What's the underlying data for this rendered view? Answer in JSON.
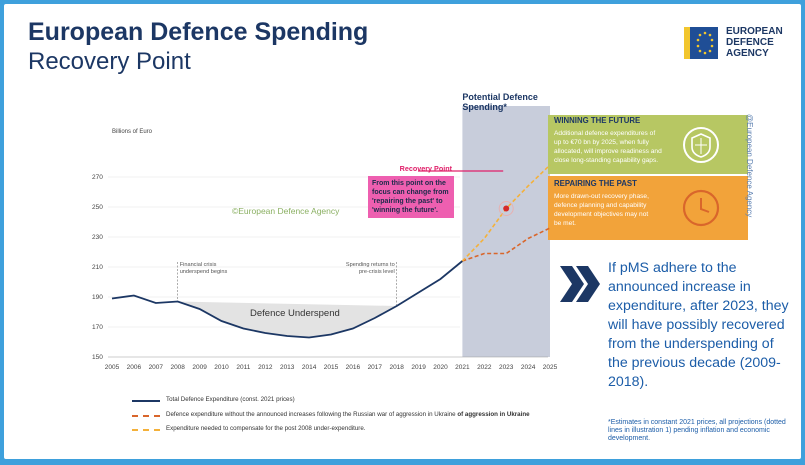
{
  "header": {
    "title": "European Defence Spending",
    "subtitle": "Recovery Point"
  },
  "logo": {
    "line1": "EUROPEAN",
    "line2": "DEFENCE",
    "line3": "AGENCY"
  },
  "chart_data": {
    "type": "line",
    "ylabel": "Billions of Euro",
    "ylim": [
      150,
      270
    ],
    "yticks": [
      150,
      170,
      190,
      210,
      230,
      250,
      270
    ],
    "categories": [
      "2005",
      "2006",
      "2007",
      "2008",
      "2009",
      "2010",
      "2011",
      "2012",
      "2013",
      "2014",
      "2015",
      "2016",
      "2017",
      "2018",
      "2019",
      "2020",
      "2021",
      "2022",
      "2023",
      "2024",
      "2025"
    ],
    "series": [
      {
        "name": "Total Defence Expenditure (const. 2021 prices)",
        "color": "#1c3764",
        "x": [
          2005,
          2006,
          2007,
          2008,
          2009,
          2010,
          2011,
          2012,
          2013,
          2014,
          2015,
          2016,
          2017,
          2018,
          2019,
          2020,
          2021
        ],
        "values": [
          189,
          191,
          186,
          187,
          182,
          174,
          169,
          166,
          164,
          163,
          165,
          169,
          176,
          184,
          193,
          202,
          214
        ]
      },
      {
        "name": "Defence expenditure without the announced increases following the Russian war of aggression in Ukraine",
        "color": "#d9662b",
        "x": [
          2021,
          2022,
          2023,
          2024,
          2025
        ],
        "values": [
          214,
          219,
          219,
          229,
          236
        ]
      },
      {
        "name": "Expenditure needed to compensate for the post 2008 under-expenditure.",
        "color": "#f4b13a",
        "x": [
          2021,
          2022,
          2023,
          2024,
          2025
        ],
        "values": [
          214,
          229,
          249,
          264,
          278
        ]
      }
    ],
    "shaded_region": {
      "label": "Potential Defence Spending*",
      "from": 2021,
      "to": 2025
    },
    "annotations": {
      "crisis": "Financial crisis underspend begins",
      "returns": "Spending returns to pre-crisis level",
      "underspend": "Defence Underspend",
      "watermark": "©European Defence Agency",
      "side_watermark": "@European Defence Agency",
      "recovery_title": "Recovery Point",
      "recovery_text": [
        "From this point on the",
        "focus can change from",
        "'repairing the past' to",
        "'winning the future'."
      ]
    },
    "boxes": {
      "future_title": "WINNING THE FUTURE",
      "future_text": [
        "Additional defence expenditures of",
        "up to €70 bn by 2025, when fully",
        "allocated, will improve readiness and",
        "close long-standing capability gaps."
      ],
      "past_title": "REPAIRING THE PAST",
      "past_text": [
        "More drawn-out recovery phase,",
        "defence planning and capability",
        "development objectives may not",
        "be met."
      ]
    },
    "colors": {
      "future_box": "#b7c763",
      "past_box": "#f2a33a",
      "shade": "#c8cddb",
      "underspend": "#e3e3e3",
      "pink": "#ee5fb0"
    }
  },
  "legend": {
    "total": "Total Defence Expenditure (const. 2021 prices)",
    "without": "Defence expenditure without the announced increases following the Russian war of aggression in Ukraine",
    "without_tail": "of aggression in Ukraine",
    "needed": "Expenditure needed to compensate for the post 2008 under-expenditure."
  },
  "side_panel": {
    "text": "If pMS adhere to the announced increase in expenditure, after 2023, they will have possibly recovered from the underspending of the previous decade (2009-2018).",
    "note": "*Estimates in constant 2021 prices, all projections (dotted lines in illustration 1) pending inflation and economic development."
  }
}
